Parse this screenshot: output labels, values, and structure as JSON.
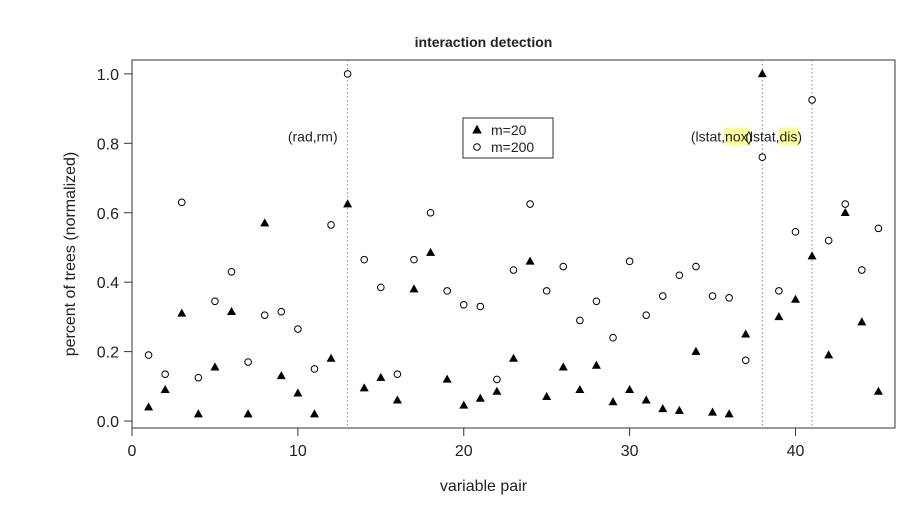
{
  "chart_data": {
    "type": "scatter",
    "title": "interaction detection",
    "xlabel": "variable pair",
    "ylabel": "percent of trees (normalized)",
    "xlim": [
      0,
      46
    ],
    "ylim": [
      -0.02,
      1.04
    ],
    "x_ticks": [
      0,
      10,
      20,
      30,
      40
    ],
    "y_ticks": [
      0.0,
      0.2,
      0.4,
      0.6,
      0.8,
      1.0
    ],
    "y_tick_labels": [
      "0.0",
      "0.2",
      "0.4",
      "0.6",
      "0.8",
      "1.0"
    ],
    "grid": false,
    "legend_position": "top-center",
    "series": [
      {
        "name": "m=20",
        "marker": "filled-triangle",
        "color": "#000000",
        "x": [
          1,
          2,
          3,
          4,
          5,
          6,
          7,
          8,
          9,
          10,
          11,
          12,
          13,
          14,
          15,
          16,
          17,
          18,
          19,
          20,
          21,
          22,
          23,
          24,
          25,
          26,
          27,
          28,
          29,
          30,
          31,
          32,
          33,
          34,
          35,
          36,
          37,
          38,
          39,
          40,
          41,
          42,
          43,
          44,
          45
        ],
        "y": [
          0.04,
          0.09,
          0.31,
          0.02,
          0.155,
          0.315,
          0.02,
          0.57,
          0.13,
          0.08,
          0.02,
          0.18,
          0.625,
          0.095,
          0.125,
          0.06,
          0.38,
          0.485,
          0.12,
          0.045,
          0.065,
          0.085,
          0.18,
          0.46,
          0.07,
          0.155,
          0.09,
          0.16,
          0.055,
          0.09,
          0.06,
          0.035,
          0.03,
          0.2,
          0.025,
          0.02,
          0.25,
          1.0,
          0.3,
          0.35,
          0.475,
          0.19,
          0.6,
          0.285,
          0.085
        ]
      },
      {
        "name": "m=200",
        "marker": "open-circle",
        "color": "#000000",
        "x": [
          1,
          2,
          3,
          4,
          5,
          6,
          7,
          8,
          9,
          10,
          11,
          12,
          13,
          14,
          15,
          16,
          17,
          18,
          19,
          20,
          21,
          22,
          23,
          24,
          25,
          26,
          27,
          28,
          29,
          30,
          31,
          32,
          33,
          34,
          35,
          36,
          37,
          38,
          39,
          40,
          41,
          42,
          43,
          44,
          45
        ],
        "y": [
          0.19,
          0.135,
          0.63,
          0.125,
          0.345,
          0.43,
          0.17,
          0.305,
          0.315,
          0.265,
          0.15,
          0.565,
          1.0,
          0.465,
          0.385,
          0.135,
          0.465,
          0.6,
          0.375,
          0.335,
          0.33,
          0.12,
          0.435,
          0.625,
          0.375,
          0.445,
          0.29,
          0.345,
          0.24,
          0.46,
          0.305,
          0.36,
          0.42,
          0.445,
          0.36,
          0.355,
          0.175,
          0.76,
          0.375,
          0.545,
          0.925,
          0.52,
          0.625,
          0.435,
          0.555
        ]
      }
    ],
    "reference_lines": [
      {
        "x": 13,
        "label": "(rad,rm)",
        "highlight": ""
      },
      {
        "x": 38,
        "label": "(lstat,",
        "highlight": "nox",
        "suffix": ")"
      },
      {
        "x": 41,
        "label": "(lstat,",
        "highlight": "dis",
        "suffix": ")"
      }
    ],
    "highlight_color": "#ffffa0"
  }
}
